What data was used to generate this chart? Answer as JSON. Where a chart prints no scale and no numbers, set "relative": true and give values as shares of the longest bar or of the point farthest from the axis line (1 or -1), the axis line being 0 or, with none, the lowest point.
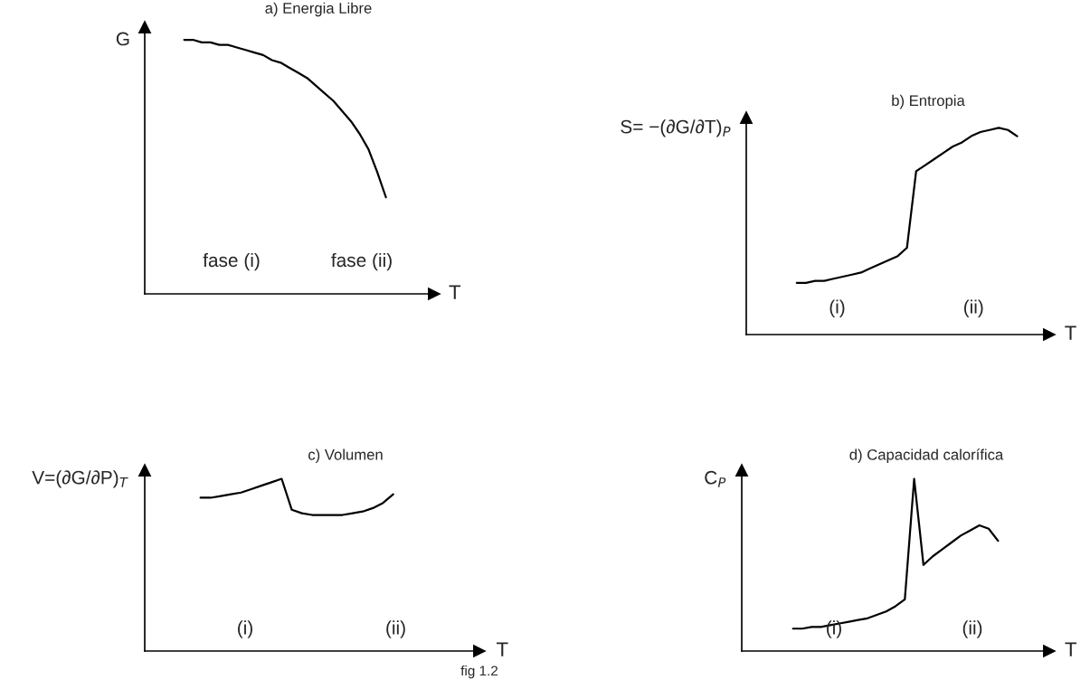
{
  "chart_data": [
    {
      "type": "line",
      "title": "a) Energia Libre",
      "ylabel": "G",
      "xlabel": "T",
      "relative": true,
      "legend": false,
      "marker": "none",
      "line_style": "solid",
      "categories": [
        null,
        null,
        null,
        null,
        null,
        null,
        null,
        null,
        null,
        null,
        null,
        null,
        null,
        null,
        null,
        null,
        null,
        null,
        null,
        null,
        null,
        null,
        null,
        null,
        null,
        null,
        null,
        null,
        null,
        null,
        null,
        null,
        null
      ],
      "series": [
        {
          "color": "#000000",
          "values": [
            null,
            null,
            null,
            null,
            1.0,
            1.0,
            0.99,
            0.99,
            0.98,
            0.98,
            0.97,
            0.96,
            0.95,
            0.94,
            0.92,
            0.91,
            0.89,
            0.87,
            0.85,
            0.82,
            0.79,
            0.76,
            0.72,
            0.68,
            0.63,
            0.57,
            0.48,
            0.38,
            null,
            null,
            null,
            null,
            null
          ]
        }
      ],
      "annotations": [
        "fase (i)",
        "fase (ii)"
      ]
    },
    {
      "type": "line",
      "title": "b) Entropia",
      "ylabel": "S= −(∂G/∂T)$_{P}$",
      "xlabel": "T",
      "relative": true,
      "legend": false,
      "marker": "none",
      "line_style": "solid",
      "categories": [
        null,
        null,
        null,
        null,
        null,
        null,
        null,
        null,
        null,
        null,
        null,
        null,
        null,
        null,
        null,
        null,
        null,
        null,
        null,
        null,
        null,
        null,
        null,
        null,
        null,
        null,
        null,
        null,
        null,
        null,
        null,
        null,
        null
      ],
      "series": [
        {
          "color": "#000000",
          "values": [
            null,
            null,
            null,
            null,
            null,
            0.25,
            0.25,
            0.26,
            0.26,
            0.27,
            0.28,
            0.29,
            0.3,
            0.32,
            0.34,
            0.36,
            0.38,
            0.42,
            0.79,
            0.82,
            0.85,
            0.88,
            0.91,
            0.93,
            0.96,
            0.98,
            0.99,
            1.0,
            0.99,
            0.96,
            null,
            null,
            null
          ]
        }
      ],
      "annotations": [
        "(i)",
        "(ii)"
      ]
    },
    {
      "type": "line",
      "title": "c) Volumen",
      "ylabel": "V=(∂G/∂P)$_{T}$",
      "xlabel": "T",
      "relative": true,
      "legend": false,
      "marker": "none",
      "line_style": "solid",
      "categories": [
        null,
        null,
        null,
        null,
        null,
        null,
        null,
        null,
        null,
        null,
        null,
        null,
        null,
        null,
        null,
        null,
        null,
        null,
        null,
        null,
        null,
        null,
        null,
        null,
        null,
        null,
        null,
        null,
        null,
        null,
        null,
        null,
        null
      ],
      "series": [
        {
          "color": "#000000",
          "values": [
            null,
            null,
            null,
            null,
            null,
            0.89,
            0.89,
            0.9,
            0.91,
            0.92,
            0.94,
            0.96,
            0.98,
            1.0,
            0.82,
            0.8,
            0.79,
            0.79,
            0.79,
            0.79,
            0.8,
            0.81,
            0.83,
            0.86,
            0.91,
            null,
            null,
            null,
            null,
            null,
            null,
            null,
            null
          ]
        }
      ],
      "annotations": [
        "(i)",
        "(ii)",
        "fig 1.2"
      ]
    },
    {
      "type": "line",
      "title": "d) Capacidad calorífica",
      "ylabel": "C$_{P}$",
      "xlabel": "T",
      "relative": true,
      "legend": false,
      "marker": "none",
      "line_style": "solid",
      "categories": [
        null,
        null,
        null,
        null,
        null,
        null,
        null,
        null,
        null,
        null,
        null,
        null,
        null,
        null,
        null,
        null,
        null,
        null,
        null,
        null,
        null,
        null,
        null,
        null,
        null,
        null,
        null,
        null,
        null,
        null,
        null,
        null,
        null
      ],
      "series": [
        {
          "color": "#000000",
          "values": [
            null,
            null,
            null,
            null,
            null,
            0.13,
            0.13,
            0.14,
            0.14,
            0.15,
            0.16,
            0.17,
            0.18,
            0.19,
            0.21,
            0.23,
            0.26,
            0.3,
            1.0,
            0.5,
            0.55,
            0.59,
            0.63,
            0.67,
            0.7,
            0.73,
            0.71,
            0.64,
            null,
            null,
            null,
            null,
            null
          ]
        }
      ],
      "annotations": [
        "(i)",
        "(ii)"
      ]
    }
  ]
}
